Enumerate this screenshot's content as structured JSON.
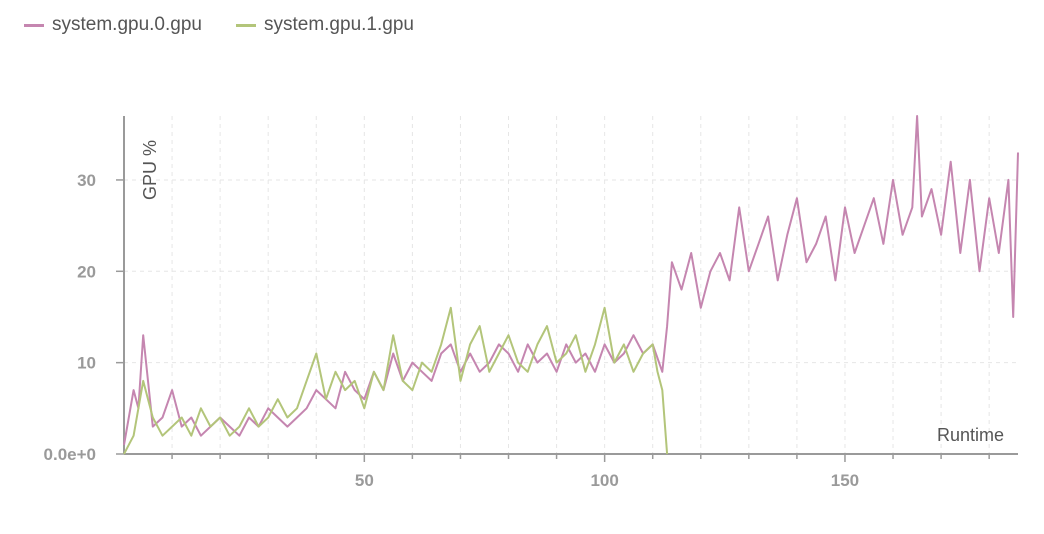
{
  "legend": {
    "items": [
      {
        "label": "system.gpu.0.gpu",
        "color": "#c586b0"
      },
      {
        "label": "system.gpu.1.gpu",
        "color": "#b3c57a"
      }
    ]
  },
  "chart_data": {
    "type": "line",
    "xlabel": "Runtime",
    "ylabel": "GPU %",
    "xlim": [
      0,
      186
    ],
    "ylim": [
      0,
      37
    ],
    "x_ticks": [
      50,
      100,
      150
    ],
    "x_tick_labels": [
      "50",
      "100",
      "150"
    ],
    "y_ticks": [
      0,
      10,
      20,
      30
    ],
    "y_tick_labels": [
      "0.0e+0",
      "10",
      "20",
      "30"
    ],
    "grid": true,
    "legend_position": "top-left",
    "series": [
      {
        "name": "system.gpu.0.gpu",
        "color": "#c586b0",
        "x": [
          0,
          2,
          3,
          4,
          6,
          8,
          10,
          12,
          14,
          16,
          18,
          20,
          22,
          24,
          26,
          28,
          30,
          32,
          34,
          36,
          38,
          40,
          42,
          44,
          46,
          48,
          50,
          52,
          54,
          56,
          58,
          60,
          62,
          64,
          66,
          68,
          70,
          72,
          74,
          76,
          78,
          80,
          82,
          84,
          86,
          88,
          90,
          92,
          94,
          96,
          98,
          100,
          102,
          104,
          106,
          108,
          110,
          112,
          113,
          114,
          116,
          118,
          120,
          122,
          124,
          126,
          128,
          130,
          132,
          134,
          136,
          138,
          140,
          142,
          144,
          146,
          148,
          150,
          152,
          154,
          156,
          158,
          160,
          162,
          164,
          165,
          166,
          168,
          170,
          172,
          174,
          176,
          178,
          180,
          182,
          184,
          185,
          186
        ],
        "y": [
          1,
          7,
          5,
          13,
          3,
          4,
          7,
          3,
          4,
          2,
          3,
          4,
          3,
          2,
          4,
          3,
          5,
          4,
          3,
          4,
          5,
          7,
          6,
          5,
          9,
          7,
          6,
          9,
          7,
          11,
          8,
          10,
          9,
          8,
          11,
          12,
          9,
          11,
          9,
          10,
          12,
          11,
          9,
          12,
          10,
          11,
          9,
          12,
          10,
          11,
          9,
          12,
          10,
          11,
          13,
          11,
          12,
          9,
          14,
          21,
          18,
          22,
          16,
          20,
          22,
          19,
          27,
          20,
          23,
          26,
          19,
          24,
          28,
          21,
          23,
          26,
          19,
          27,
          22,
          25,
          28,
          23,
          30,
          24,
          27,
          37,
          26,
          29,
          24,
          32,
          22,
          30,
          20,
          28,
          22,
          30,
          15,
          33
        ]
      },
      {
        "name": "system.gpu.1.gpu",
        "color": "#b3c57a",
        "x": [
          0,
          2,
          4,
          6,
          8,
          10,
          12,
          14,
          16,
          18,
          20,
          22,
          24,
          26,
          28,
          30,
          32,
          34,
          36,
          38,
          40,
          42,
          44,
          46,
          48,
          50,
          52,
          54,
          56,
          58,
          60,
          62,
          64,
          66,
          68,
          70,
          72,
          74,
          76,
          78,
          80,
          82,
          84,
          86,
          88,
          90,
          92,
          94,
          96,
          98,
          100,
          102,
          104,
          106,
          108,
          110,
          111,
          112,
          113
        ],
        "y": [
          0,
          2,
          8,
          4,
          2,
          3,
          4,
          2,
          5,
          3,
          4,
          2,
          3,
          5,
          3,
          4,
          6,
          4,
          5,
          8,
          11,
          6,
          9,
          7,
          8,
          5,
          9,
          7,
          13,
          8,
          7,
          10,
          9,
          12,
          16,
          8,
          12,
          14,
          9,
          11,
          13,
          10,
          9,
          12,
          14,
          10,
          11,
          13,
          9,
          12,
          16,
          10,
          12,
          9,
          11,
          12,
          9,
          7,
          0
        ]
      }
    ]
  }
}
